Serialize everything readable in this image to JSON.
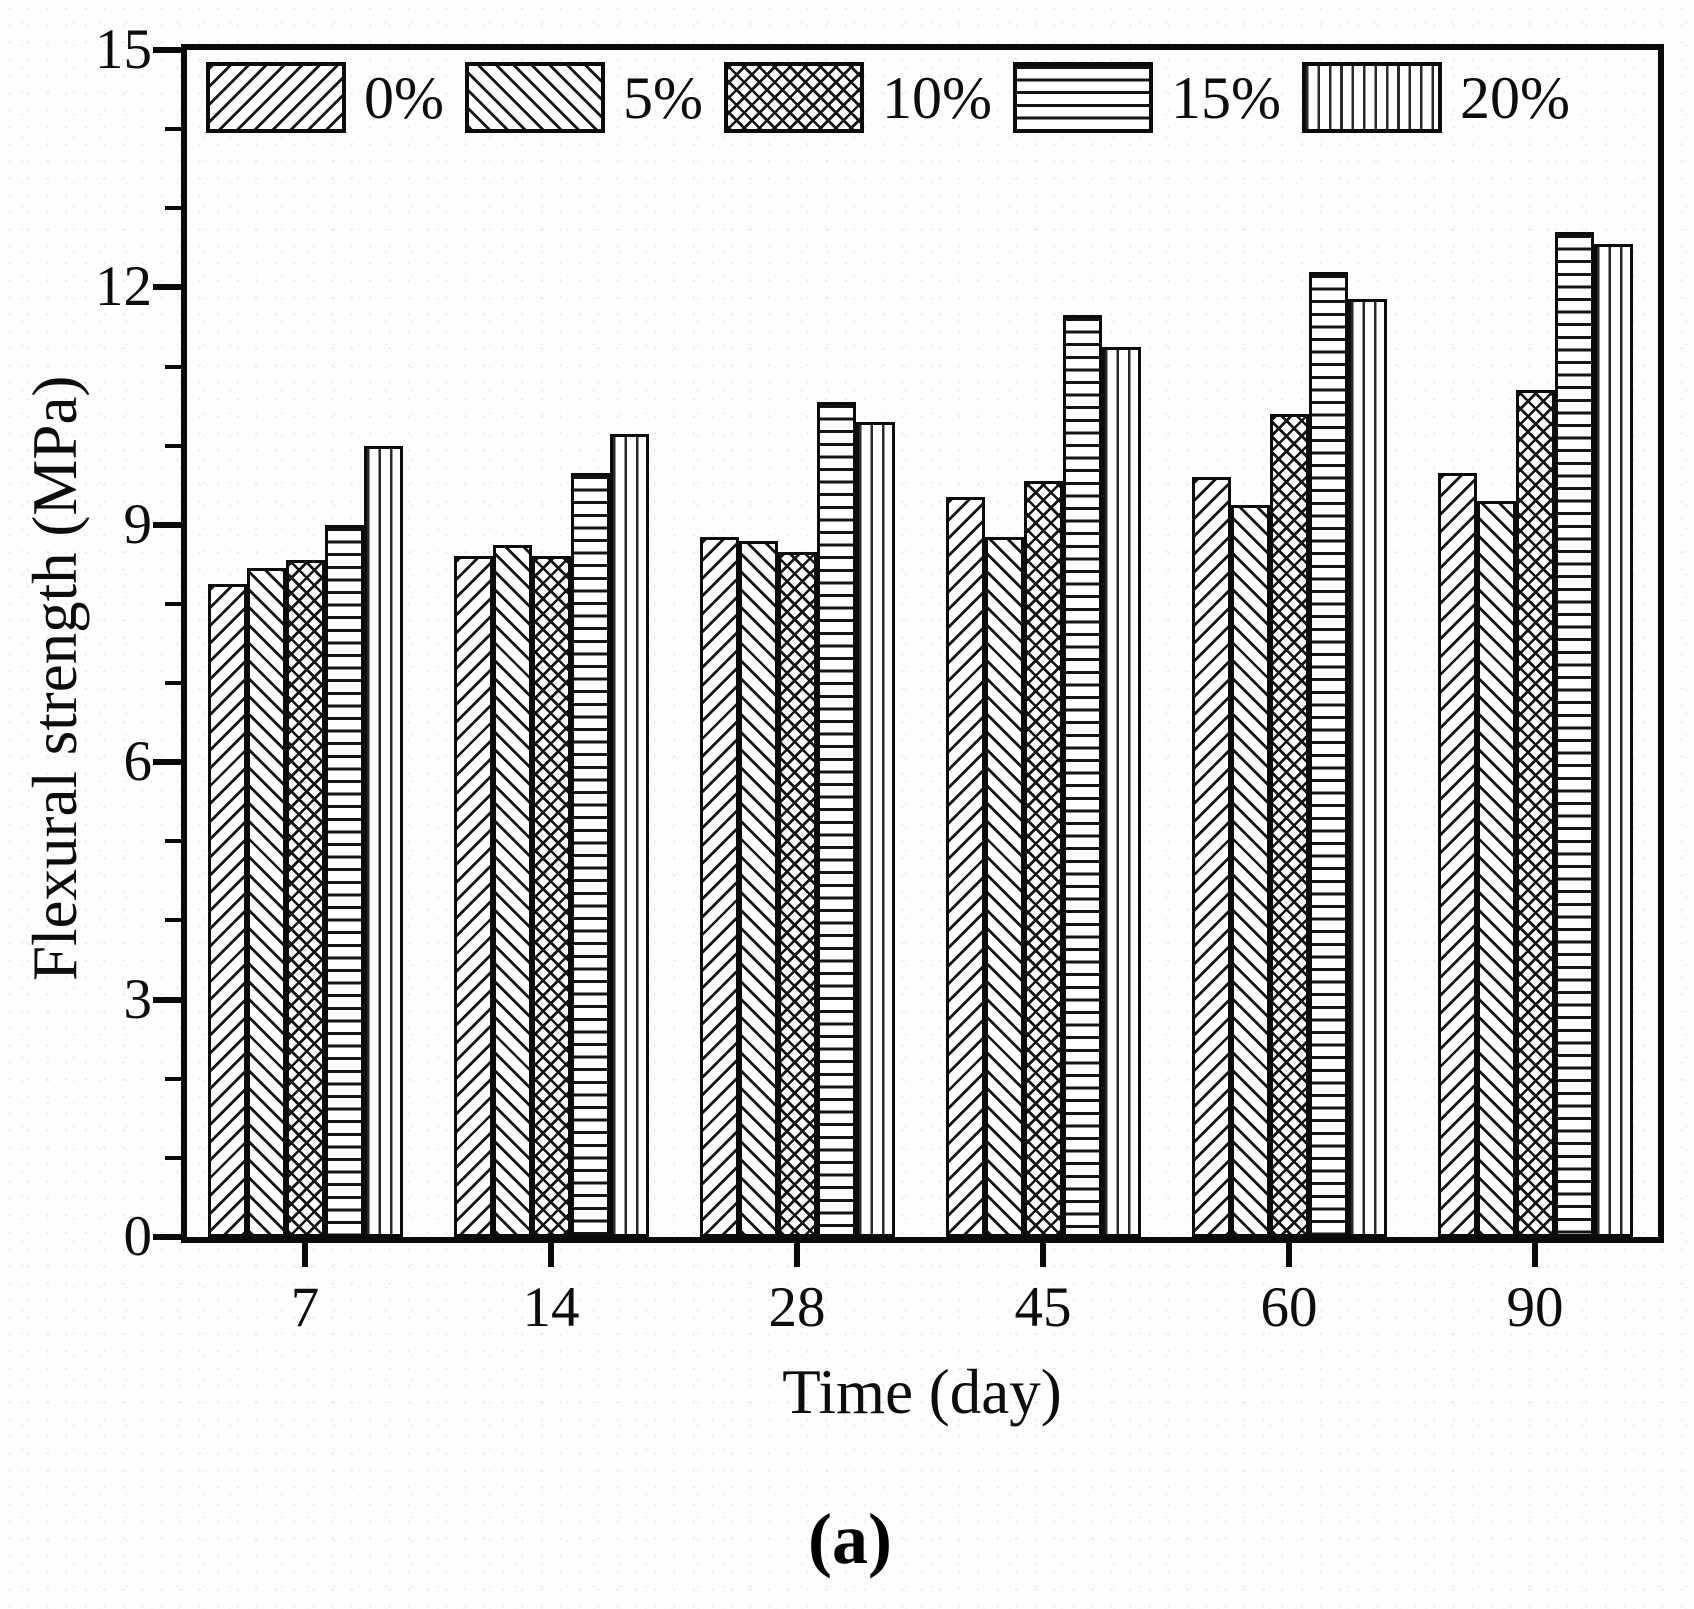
{
  "panel_label": "(a)",
  "chart_data": {
    "type": "bar",
    "title": "",
    "xlabel": "Time (day)",
    "ylabel": "Flexural strength (MPa)",
    "ylim": [
      0,
      15
    ],
    "y_major_ticks": [
      0,
      3,
      6,
      9,
      12,
      15
    ],
    "y_minor_tick_step": 1,
    "grid": false,
    "legend_position": "top-left-inside",
    "categories": [
      "7",
      "14",
      "28",
      "45",
      "60",
      "90"
    ],
    "series": [
      {
        "name": "0%",
        "pattern": "diagonal-forward",
        "values": [
          8.25,
          8.6,
          8.85,
          9.35,
          9.6,
          9.65
        ]
      },
      {
        "name": "5%",
        "pattern": "diagonal-backward",
        "values": [
          8.45,
          8.75,
          8.8,
          8.85,
          9.25,
          9.3
        ]
      },
      {
        "name": "10%",
        "pattern": "crosshatch",
        "values": [
          8.55,
          8.6,
          8.65,
          9.55,
          10.4,
          10.7
        ]
      },
      {
        "name": "15%",
        "pattern": "horizontal-lines",
        "values": [
          9.0,
          9.65,
          10.55,
          11.65,
          12.2,
          12.7
        ]
      },
      {
        "name": "20%",
        "pattern": "vertical-lines",
        "values": [
          10.0,
          10.15,
          10.3,
          11.25,
          11.85,
          12.55
        ]
      }
    ]
  }
}
